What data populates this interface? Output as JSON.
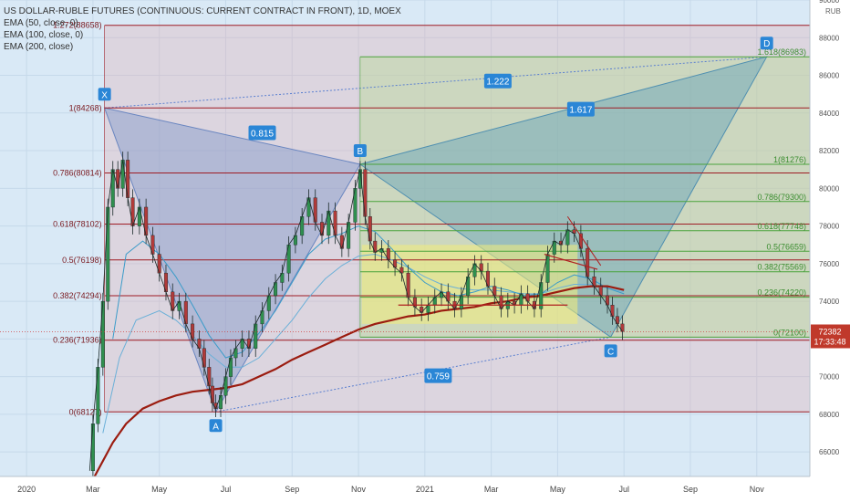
{
  "legend": {
    "title": "US DOLLAR-RUBLE FUTURES (CONTINUOUS: CURRENT CONTRACT IN FRONT), 1D, MOEX",
    "ema50": "EMA (50, close, 0)",
    "ema100": "EMA (100, close, 0)",
    "ema200": "EMA (200, close)"
  },
  "chart_data": {
    "type": "line",
    "instrument": "US DOLLAR-RUBLE FUTURES (CONTINUOUS: CURRENT CONTRACT IN FRONT), 1D, MOEX",
    "currency": "RUB",
    "y_ticks": [
      66000,
      68000,
      70000,
      72000,
      74000,
      76000,
      78000,
      80000,
      82000,
      84000,
      86000,
      88000,
      90000
    ],
    "ylim": [
      64700,
      90000
    ],
    "x_ticks": [
      "2020",
      "Mar",
      "May",
      "Jul",
      "Sep",
      "Nov",
      "2021",
      "Mar",
      "May",
      "Jul",
      "Sep",
      "Nov"
    ],
    "x_tick_months": [
      0,
      2,
      4,
      6,
      8,
      10,
      12,
      14,
      16,
      18,
      20,
      22
    ],
    "xlim_months": [
      -0.8,
      23.6
    ],
    "last_price": "72382",
    "countdown": "17:33:48",
    "points": [
      {
        "label": "X",
        "month": 2.35,
        "value": 84268
      },
      {
        "label": "A",
        "month": 5.7,
        "value": 68127
      },
      {
        "label": "B",
        "month": 10.05,
        "value": 81276
      },
      {
        "label": "C",
        "month": 17.6,
        "value": 72100
      },
      {
        "label": "D",
        "month": 22.3,
        "value": 86983
      }
    ],
    "ratios": [
      {
        "label": "0.815",
        "month": 7.1,
        "value": 82950
      },
      {
        "label": "1.222",
        "month": 14.2,
        "value": 85700
      },
      {
        "label": "1.617",
        "month": 16.7,
        "value": 84200
      },
      {
        "label": "0.759",
        "month": 12.4,
        "value": 70050
      }
    ],
    "fib_left": [
      {
        "label": "1.272(88658)",
        "value": 88658
      },
      {
        "label": "1(84268)",
        "value": 84268
      },
      {
        "label": "0.786(80814)",
        "value": 80814
      },
      {
        "label": "0.618(78102)",
        "value": 78102
      },
      {
        "label": "0.5(76198)",
        "value": 76198
      },
      {
        "label": "0.382(74294)",
        "value": 74294
      },
      {
        "label": "0.236(71936)",
        "value": 71936
      },
      {
        "label": "0(68127)",
        "value": 68127
      }
    ],
    "fib_right": [
      {
        "label": "1.618(86983)",
        "value": 86983
      },
      {
        "label": "1(81276)",
        "value": 81276
      },
      {
        "label": "0.786(79300)",
        "value": 79300
      },
      {
        "label": "0.618(77748)",
        "value": 77748
      },
      {
        "label": "0.5(76659)",
        "value": 76659
      },
      {
        "label": "0.382(75569)",
        "value": 75569
      },
      {
        "label": "0.236(74220)",
        "value": 74220
      },
      {
        "label": "0(72100)",
        "value": 72100
      }
    ],
    "price_path": [
      [
        1.9,
        65000
      ],
      [
        2.0,
        67500
      ],
      [
        2.15,
        70500
      ],
      [
        2.3,
        74000
      ],
      [
        2.45,
        79000
      ],
      [
        2.6,
        81000
      ],
      [
        2.75,
        80000
      ],
      [
        2.9,
        81500
      ],
      [
        3.05,
        79500
      ],
      [
        3.2,
        78000
      ],
      [
        3.4,
        79000
      ],
      [
        3.6,
        77500
      ],
      [
        3.8,
        76500
      ],
      [
        4.0,
        75500
      ],
      [
        4.2,
        74500
      ],
      [
        4.4,
        73500
      ],
      [
        4.6,
        74000
      ],
      [
        4.8,
        72800
      ],
      [
        5.0,
        72000
      ],
      [
        5.2,
        71500
      ],
      [
        5.35,
        70500
      ],
      [
        5.5,
        69500
      ],
      [
        5.6,
        68600
      ],
      [
        5.7,
        68300
      ],
      [
        5.85,
        69000
      ],
      [
        6.0,
        70000
      ],
      [
        6.15,
        71000
      ],
      [
        6.3,
        71500
      ],
      [
        6.5,
        72000
      ],
      [
        6.7,
        71500
      ],
      [
        6.9,
        72800
      ],
      [
        7.1,
        73500
      ],
      [
        7.3,
        74300
      ],
      [
        7.5,
        75000
      ],
      [
        7.7,
        75500
      ],
      [
        7.9,
        77000
      ],
      [
        8.1,
        77500
      ],
      [
        8.3,
        78500
      ],
      [
        8.5,
        79500
      ],
      [
        8.7,
        78200
      ],
      [
        8.9,
        77500
      ],
      [
        9.1,
        78800
      ],
      [
        9.3,
        77500
      ],
      [
        9.5,
        76800
      ],
      [
        9.7,
        78200
      ],
      [
        9.9,
        80000
      ],
      [
        10.05,
        81000
      ],
      [
        10.2,
        78500
      ],
      [
        10.35,
        77200
      ],
      [
        10.5,
        76600
      ],
      [
        10.7,
        76800
      ],
      [
        10.9,
        76200
      ],
      [
        11.1,
        75800
      ],
      [
        11.3,
        75500
      ],
      [
        11.5,
        74200
      ],
      [
        11.7,
        73700
      ],
      [
        11.9,
        73400
      ],
      [
        12.1,
        73800
      ],
      [
        12.3,
        74200
      ],
      [
        12.5,
        74500
      ],
      [
        12.7,
        74000
      ],
      [
        12.9,
        73600
      ],
      [
        13.1,
        74300
      ],
      [
        13.3,
        75300
      ],
      [
        13.5,
        76000
      ],
      [
        13.7,
        75600
      ],
      [
        13.9,
        74800
      ],
      [
        14.1,
        74300
      ],
      [
        14.3,
        73600
      ],
      [
        14.5,
        74000
      ],
      [
        14.7,
        73800
      ],
      [
        14.9,
        74400
      ],
      [
        15.1,
        74000
      ],
      [
        15.3,
        73600
      ],
      [
        15.5,
        75000
      ],
      [
        15.7,
        76500
      ],
      [
        15.9,
        77200
      ],
      [
        16.1,
        77000
      ],
      [
        16.3,
        77800
      ],
      [
        16.5,
        77600
      ],
      [
        16.7,
        76800
      ],
      [
        16.9,
        75300
      ],
      [
        17.1,
        74800
      ],
      [
        17.3,
        74300
      ],
      [
        17.5,
        73800
      ],
      [
        17.65,
        73200
      ],
      [
        17.8,
        72800
      ],
      [
        17.95,
        72400
      ]
    ],
    "ema50_path": [
      [
        2.6,
        72000
      ],
      [
        3.0,
        76500
      ],
      [
        3.5,
        77200
      ],
      [
        4.0,
        76500
      ],
      [
        4.5,
        75300
      ],
      [
        5.0,
        73800
      ],
      [
        5.5,
        72200
      ],
      [
        6.0,
        71000
      ],
      [
        6.5,
        71300
      ],
      [
        7.0,
        72300
      ],
      [
        7.5,
        73500
      ],
      [
        8.0,
        75000
      ],
      [
        8.5,
        76500
      ],
      [
        9.0,
        77300
      ],
      [
        9.5,
        77600
      ],
      [
        10.0,
        78000
      ],
      [
        10.5,
        77700
      ],
      [
        11.0,
        76800
      ],
      [
        11.5,
        75800
      ],
      [
        12.0,
        75000
      ],
      [
        12.5,
        74500
      ],
      [
        13.0,
        74300
      ],
      [
        13.5,
        74500
      ],
      [
        14.0,
        74800
      ],
      [
        14.5,
        74600
      ],
      [
        15.0,
        74300
      ],
      [
        15.5,
        74400
      ],
      [
        16.0,
        75000
      ],
      [
        16.5,
        75400
      ],
      [
        17.0,
        75200
      ],
      [
        17.5,
        74700
      ],
      [
        18.0,
        74400
      ]
    ],
    "ema100_path": [
      [
        2.3,
        67000
      ],
      [
        2.8,
        71000
      ],
      [
        3.3,
        73000
      ],
      [
        4.0,
        73500
      ],
      [
        4.5,
        73000
      ],
      [
        5.0,
        72200
      ],
      [
        5.5,
        71200
      ],
      [
        6.0,
        70500
      ],
      [
        6.5,
        70500
      ],
      [
        7.0,
        71000
      ],
      [
        7.5,
        72000
      ],
      [
        8.0,
        73000
      ],
      [
        8.5,
        74200
      ],
      [
        9.0,
        75200
      ],
      [
        9.5,
        75900
      ],
      [
        10.0,
        76400
      ],
      [
        10.5,
        76500
      ],
      [
        11.0,
        76200
      ],
      [
        11.5,
        75800
      ],
      [
        12.0,
        75300
      ],
      [
        12.5,
        74900
      ],
      [
        13.0,
        74700
      ],
      [
        13.5,
        74600
      ],
      [
        14.0,
        74600
      ],
      [
        14.5,
        74500
      ],
      [
        15.0,
        74400
      ],
      [
        15.5,
        74400
      ],
      [
        16.0,
        74700
      ],
      [
        16.5,
        74900
      ],
      [
        17.0,
        74900
      ],
      [
        17.5,
        74700
      ],
      [
        18.0,
        74500
      ]
    ],
    "ema200_path": [
      [
        2.05,
        64700
      ],
      [
        2.6,
        66500
      ],
      [
        3.0,
        67500
      ],
      [
        3.5,
        68300
      ],
      [
        4.0,
        68700
      ],
      [
        4.5,
        69000
      ],
      [
        5.0,
        69200
      ],
      [
        5.5,
        69300
      ],
      [
        6.0,
        69400
      ],
      [
        6.5,
        69600
      ],
      [
        7.0,
        70000
      ],
      [
        7.5,
        70400
      ],
      [
        8.0,
        70900
      ],
      [
        8.5,
        71300
      ],
      [
        9.0,
        71700
      ],
      [
        9.5,
        72100
      ],
      [
        10.0,
        72500
      ],
      [
        10.5,
        72800
      ],
      [
        11.0,
        73000
      ],
      [
        11.5,
        73200
      ],
      [
        12.0,
        73300
      ],
      [
        12.5,
        73500
      ],
      [
        13.0,
        73600
      ],
      [
        13.5,
        73700
      ],
      [
        14.0,
        73900
      ],
      [
        14.5,
        74000
      ],
      [
        15.0,
        74200
      ],
      [
        15.5,
        74300
      ],
      [
        16.0,
        74500
      ],
      [
        16.5,
        74700
      ],
      [
        17.0,
        74800
      ],
      [
        17.5,
        74800
      ],
      [
        18.0,
        74600
      ]
    ]
  }
}
